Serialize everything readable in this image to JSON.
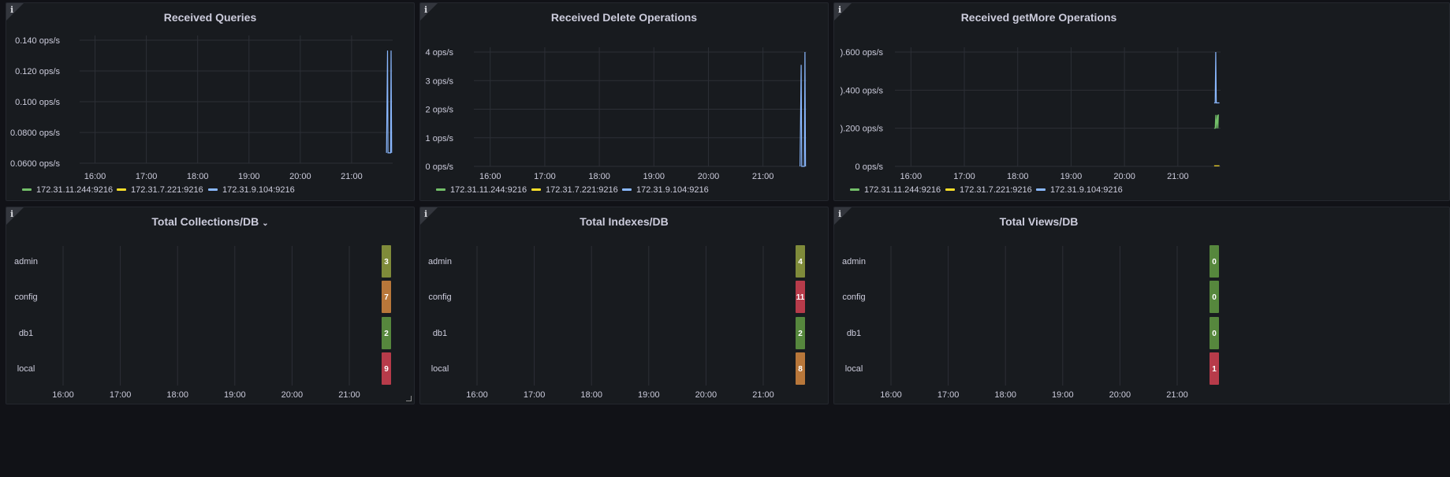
{
  "colors": {
    "green": "#73bf69",
    "yellow": "#fade2a",
    "blue": "#8ab8ff",
    "cell_green": "#56873d",
    "cell_olive": "#7f8b3a",
    "cell_orange": "#b8773a",
    "cell_red": "#b73b4a",
    "grid": "#2c2f36",
    "axis_text": "#ccccdc"
  },
  "legend_items": [
    {
      "label": "172.31.11.244:9216",
      "color": "#73bf69"
    },
    {
      "label": "172.31.7.221:9216",
      "color": "#fade2a"
    },
    {
      "label": "172.31.9.104:9216",
      "color": "#8ab8ff"
    }
  ],
  "panels": [
    {
      "id": "received-queries",
      "title": "Received Queries",
      "chart_data": {
        "type": "line",
        "title": "Received Queries",
        "x_ticks": [
          "16:00",
          "17:00",
          "18:00",
          "19:00",
          "20:00",
          "21:00"
        ],
        "y_ticks": [
          "0.140 ops/s",
          "0.120 ops/s",
          "0.100 ops/s",
          "0.0800 ops/s",
          "0.0600 ops/s"
        ],
        "ylim": [
          0.06,
          0.14
        ],
        "x_range_hours": [
          15.7,
          21.8
        ],
        "series": [
          {
            "name": "172.31.11.244:9216",
            "points": []
          },
          {
            "name": "172.31.7.221:9216",
            "points": []
          },
          {
            "name": "172.31.9.104:9216",
            "points": [
              [
                21.68,
                0.0667
              ],
              [
                21.7,
                0.1333
              ],
              [
                21.71,
                0.0667
              ],
              [
                21.76,
                0.0667
              ],
              [
                21.77,
                0.1333
              ],
              [
                21.78,
                0.0667
              ]
            ]
          }
        ],
        "legend": "bottom-left"
      }
    },
    {
      "id": "received-delete-operations",
      "title": "Received Delete Operations",
      "chart_data": {
        "type": "line",
        "title": "Received Delete Operations",
        "x_ticks": [
          "16:00",
          "17:00",
          "18:00",
          "19:00",
          "20:00",
          "21:00"
        ],
        "y_ticks": [
          "4 ops/s",
          "3 ops/s",
          "2 ops/s",
          "1 ops/s",
          "0 ops/s"
        ],
        "ylim": [
          0,
          4
        ],
        "x_range_hours": [
          15.7,
          21.8
        ],
        "series": [
          {
            "name": "172.31.11.244:9216",
            "points": []
          },
          {
            "name": "172.31.7.221:9216",
            "points": []
          },
          {
            "name": "172.31.9.104:9216",
            "points": [
              [
                21.68,
                0
              ],
              [
                21.7,
                3.55
              ],
              [
                21.71,
                0
              ],
              [
                21.76,
                0
              ],
              [
                21.77,
                4
              ],
              [
                21.78,
                0
              ]
            ]
          }
        ],
        "legend": "bottom-left"
      }
    },
    {
      "id": "received-getmore-operations",
      "title": "Received getMore Operations",
      "chart_data": {
        "type": "line",
        "title": "Received getMore Operations",
        "x_ticks": [
          "16:00",
          "17:00",
          "18:00",
          "19:00",
          "20:00",
          "21:00"
        ],
        "y_ticks": [
          ").600 ops/s",
          ").400 ops/s",
          ").200 ops/s",
          "0 ops/s"
        ],
        "ylim": [
          0,
          0.6
        ],
        "x_range_hours": [
          15.7,
          21.8
        ],
        "series": [
          {
            "name": "172.31.11.244:9216",
            "points": [
              [
                21.68,
                0.2
              ],
              [
                21.7,
                0.2
              ],
              [
                21.71,
                0.27
              ],
              [
                21.72,
                0.2
              ],
              [
                21.74,
                0.27
              ],
              [
                21.75,
                0.2
              ],
              [
                21.76,
                0.27
              ],
              [
                21.77,
                0.27
              ]
            ]
          },
          {
            "name": "172.31.7.221:9216",
            "points": [
              [
                21.68,
                0.003
              ],
              [
                21.78,
                0.003
              ]
            ]
          },
          {
            "name": "172.31.9.104:9216",
            "points": [
              [
                21.68,
                0.333
              ],
              [
                21.7,
                0.333
              ],
              [
                21.71,
                0.6
              ],
              [
                21.72,
                0.333
              ],
              [
                21.78,
                0.333
              ]
            ]
          }
        ],
        "legend": "bottom-left"
      }
    },
    {
      "id": "total-collections-db",
      "title": "Total Collections/DB",
      "has_dropdown": true,
      "chart_data": {
        "type": "table",
        "title": "Total Collections/DB",
        "rows": [
          "admin",
          "config",
          "db1",
          "local"
        ],
        "values": [
          3,
          7,
          2,
          9
        ],
        "cell_colors": [
          "#7f8b3a",
          "#b8773a",
          "#56873d",
          "#b73b4a"
        ],
        "x_ticks": [
          "16:00",
          "17:00",
          "18:00",
          "19:00",
          "20:00",
          "21:00"
        ]
      }
    },
    {
      "id": "total-indexes-db",
      "title": "Total Indexes/DB",
      "chart_data": {
        "type": "table",
        "title": "Total Indexes/DB",
        "rows": [
          "admin",
          "config",
          "db1",
          "local"
        ],
        "values": [
          4,
          11,
          2,
          8
        ],
        "cell_colors": [
          "#7f8b3a",
          "#b73b4a",
          "#56873d",
          "#b8773a"
        ],
        "x_ticks": [
          "16:00",
          "17:00",
          "18:00",
          "19:00",
          "20:00",
          "21:00"
        ]
      }
    },
    {
      "id": "total-views-db",
      "title": "Total Views/DB",
      "chart_data": {
        "type": "table",
        "title": "Total Views/DB",
        "rows": [
          "admin",
          "config",
          "db1",
          "local"
        ],
        "values": [
          0,
          0,
          0,
          1
        ],
        "cell_colors": [
          "#56873d",
          "#56873d",
          "#56873d",
          "#b73b4a"
        ],
        "x_ticks": [
          "16:00",
          "17:00",
          "18:00",
          "19:00",
          "20:00",
          "21:00"
        ]
      }
    }
  ]
}
